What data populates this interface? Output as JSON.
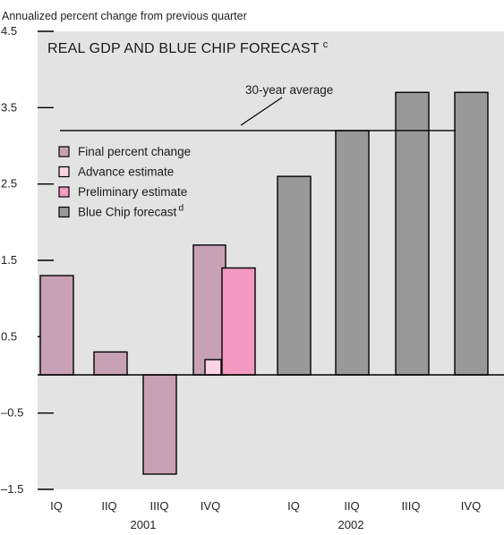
{
  "chart_data": {
    "type": "bar",
    "title": "REAL GDP AND BLUE CHIP FORECAST",
    "title_footnote": "c",
    "ylabel": "Annualized percent change from previous quarter",
    "ylim": [
      -1.5,
      4.5
    ],
    "yticks": [
      "4.5",
      "3.5",
      "2.5",
      "1.5",
      "0.5",
      "–0.5",
      "–1.5"
    ],
    "ytick_values": [
      4.5,
      3.5,
      2.5,
      1.5,
      0.5,
      -0.5,
      -1.5
    ],
    "categories": [
      "IQ",
      "IIQ",
      "IIIQ",
      "IVQ",
      "IQ",
      "IIQ",
      "IIIQ",
      "IVQ"
    ],
    "groups": [
      {
        "label": "2001",
        "categories": [
          0,
          1,
          2,
          3
        ]
      },
      {
        "label": "2002",
        "categories": [
          4,
          5,
          6,
          7
        ]
      }
    ],
    "series": [
      {
        "name": "Final percent change",
        "color": "#c8a2b4",
        "values": [
          1.3,
          0.3,
          -1.3,
          1.7,
          null,
          null,
          null,
          null
        ]
      },
      {
        "name": "Advance estimate",
        "color": "#fbd3e3",
        "values": [
          null,
          null,
          null,
          0.2,
          null,
          null,
          null,
          null
        ]
      },
      {
        "name": "Preliminary estimate",
        "color": "#f499c1",
        "values": [
          null,
          null,
          null,
          1.4,
          null,
          null,
          null,
          null
        ]
      },
      {
        "name": "Blue Chip forecast",
        "footnote": "d",
        "color": "#999999",
        "values": [
          null,
          null,
          null,
          null,
          2.6,
          3.2,
          3.7,
          3.7
        ]
      }
    ],
    "reference_line": {
      "label": "30-year average",
      "value": 3.2
    },
    "legend_position": "upper-left",
    "background": "#e3e3e3",
    "grid": false
  }
}
